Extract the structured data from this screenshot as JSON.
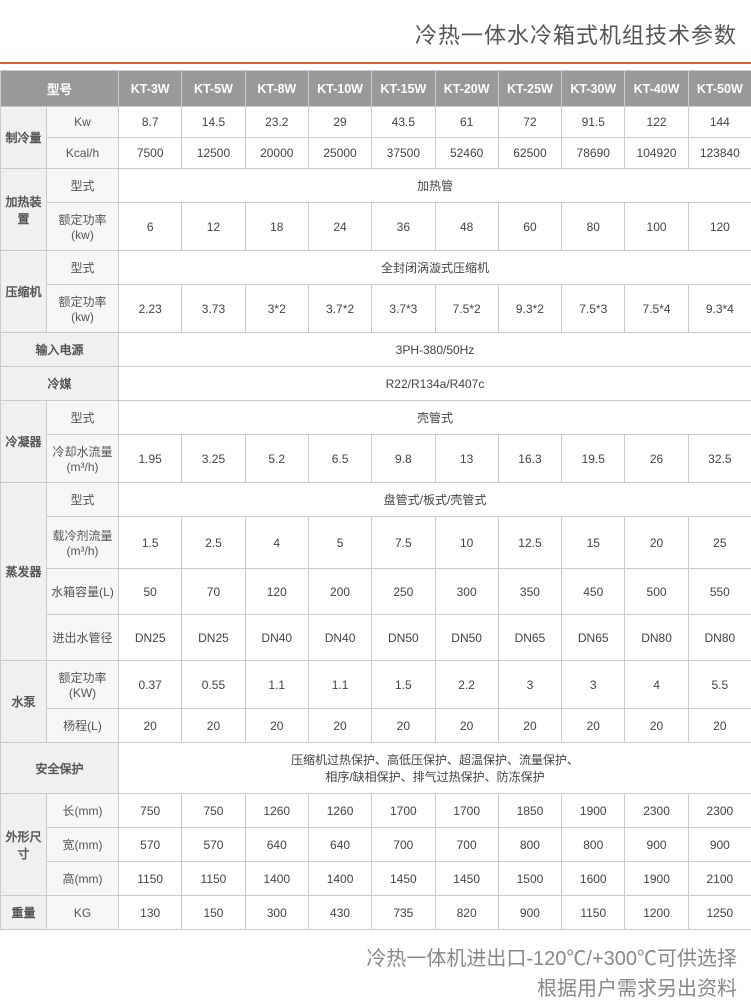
{
  "title": "冷热一体水冷箱式机组技术参数",
  "divider_color": "#e06030",
  "models": [
    "KT-3W",
    "KT-5W",
    "KT-8W",
    "KT-10W",
    "KT-15W",
    "KT-20W",
    "KT-25W",
    "KT-30W",
    "KT-40W",
    "KT-50W"
  ],
  "model_label": "型号",
  "groups": {
    "cooling": {
      "label": "制冷量",
      "kw_label": "Kw",
      "kw": [
        "8.7",
        "14.5",
        "23.2",
        "29",
        "43.5",
        "61",
        "72",
        "91.5",
        "122",
        "144"
      ],
      "kcal_label": "Kcal/h",
      "kcal": [
        "7500",
        "12500",
        "20000",
        "25000",
        "37500",
        "52460",
        "62500",
        "78690",
        "104920",
        "123840"
      ]
    },
    "heater": {
      "label": "加热装置",
      "type_label": "型式",
      "type_value": "加热管",
      "power_label": "额定功率(kw)",
      "power": [
        "6",
        "12",
        "18",
        "24",
        "36",
        "48",
        "60",
        "80",
        "100",
        "120"
      ]
    },
    "compressor": {
      "label": "压缩机",
      "type_label": "型式",
      "type_value": "全封闭涡漩式压缩机",
      "power_label": "额定功率(kw)",
      "power": [
        "2.23",
        "3.73",
        "3*2",
        "3.7*2",
        "3.7*3",
        "7.5*2",
        "9.3*2",
        "7.5*3",
        "7.5*4",
        "9.3*4"
      ]
    },
    "input_power": {
      "label": "输入电源",
      "value": "3PH-380/50Hz"
    },
    "refrigerant": {
      "label": "冷媒",
      "value": "R22/R134a/R407c"
    },
    "condenser": {
      "label": "冷凝器",
      "type_label": "型式",
      "type_value": "壳管式",
      "flow_label": "冷却水流量(m³/h)",
      "flow": [
        "1.95",
        "3.25",
        "5.2",
        "6.5",
        "9.8",
        "13",
        "16.3",
        "19.5",
        "26",
        "32.5"
      ]
    },
    "evaporator": {
      "label": "蒸发器",
      "type_label": "型式",
      "type_value": "盘管式/板式/壳管式",
      "flow_label": "载冷剂流量(m³/h)",
      "flow": [
        "1.5",
        "2.5",
        "4",
        "5",
        "7.5",
        "10",
        "12.5",
        "15",
        "20",
        "25"
      ],
      "tank_label": "水箱容量(L)",
      "tank": [
        "50",
        "70",
        "120",
        "200",
        "250",
        "300",
        "350",
        "450",
        "500",
        "550"
      ],
      "pipe_label": "进出水管径",
      "pipe": [
        "DN25",
        "DN25",
        "DN40",
        "DN40",
        "DN50",
        "DN50",
        "DN65",
        "DN65",
        "DN80",
        "DN80"
      ]
    },
    "pump": {
      "label": "水泵",
      "power_label": "额定功率(KW)",
      "power": [
        "0.37",
        "0.55",
        "1.1",
        "1.1",
        "1.5",
        "2.2",
        "3",
        "3",
        "4",
        "5.5"
      ],
      "head_label": "杨程(L)",
      "head": [
        "20",
        "20",
        "20",
        "20",
        "20",
        "20",
        "20",
        "20",
        "20",
        "20"
      ]
    },
    "protection": {
      "label": "安全保护",
      "value_l1": "压缩机过热保护、高低压保护、超温保护、流量保护、",
      "value_l2": "相序/缺相保护、排气过热保护、防冻保护"
    },
    "dimensions": {
      "label": "外形尺寸",
      "l_label": "长(mm)",
      "l": [
        "750",
        "750",
        "1260",
        "1260",
        "1700",
        "1700",
        "1850",
        "1900",
        "2300",
        "2300"
      ],
      "w_label": "宽(mm)",
      "w": [
        "570",
        "570",
        "640",
        "640",
        "700",
        "700",
        "800",
        "800",
        "900",
        "900"
      ],
      "h_label": "高(mm)",
      "h": [
        "1150",
        "1150",
        "1400",
        "1400",
        "1450",
        "1450",
        "1500",
        "1600",
        "1900",
        "2100"
      ]
    },
    "weight": {
      "label": "重量",
      "unit": "KG",
      "values": [
        "130",
        "150",
        "300",
        "430",
        "735",
        "820",
        "900",
        "1150",
        "1200",
        "1250"
      ]
    }
  },
  "footnote": {
    "line1": "冷热一体机进出口-120℃/+300℃可供选择",
    "line2": "根据用户需求另出资料"
  }
}
